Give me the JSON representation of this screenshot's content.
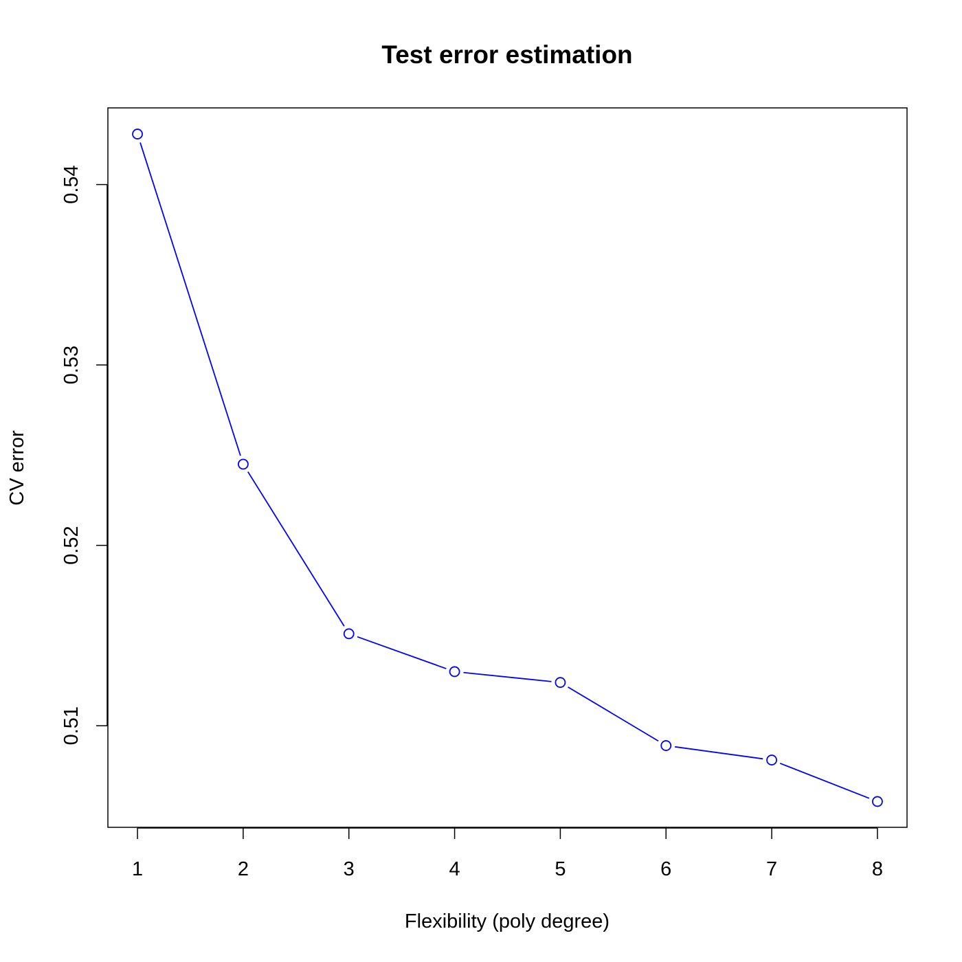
{
  "chart_data": {
    "type": "line",
    "title": "Test error estimation",
    "xlabel": "Flexibility (poly degree)",
    "ylabel": "CV error",
    "x": [
      1,
      2,
      3,
      4,
      5,
      6,
      7,
      8
    ],
    "series": [
      {
        "values": [
          0.5428,
          0.5245,
          0.5151,
          0.513,
          0.5124,
          0.5089,
          0.5081,
          0.5058
        ]
      }
    ],
    "x_ticks": [
      "1",
      "2",
      "3",
      "4",
      "5",
      "6",
      "7",
      "8"
    ],
    "y_ticks": [
      "0.51",
      "0.52",
      "0.53",
      "0.54"
    ],
    "xlim": [
      0.72,
      8.28
    ],
    "ylim": [
      0.50437,
      0.54425
    ],
    "grid": false,
    "marker": "open-circle",
    "colors": {
      "series": "#0000ff",
      "axis": "#000000",
      "background": "#ffffff"
    }
  }
}
